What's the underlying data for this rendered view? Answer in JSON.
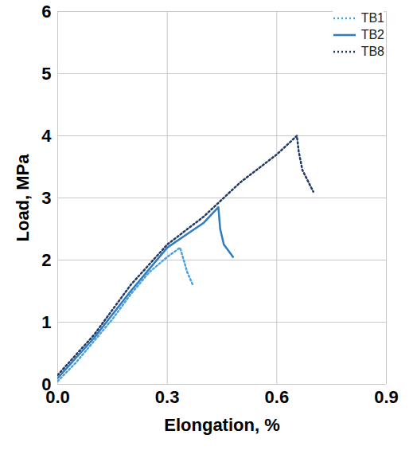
{
  "chart_data": {
    "type": "line",
    "x_label": "Elongation, %",
    "y_label": "Load, MPa",
    "xlim": [
      0,
      0.9
    ],
    "xticks": [
      {
        "value": 0,
        "label": "0.0"
      },
      0.3,
      0.6,
      0.9
    ],
    "ylim": [
      0,
      6
    ],
    "yticks": [
      0,
      1,
      2,
      3,
      4,
      5,
      6
    ],
    "grid": true,
    "legend": "top-right",
    "series": [
      {
        "name": "TB1",
        "color": "#4aa3df",
        "line_style": "dotted",
        "x": [
          0,
          0.05,
          0.1,
          0.15,
          0.2,
          0.25,
          0.3,
          0.335,
          0.34,
          0.355,
          0.37
        ],
        "values": [
          0.05,
          0.35,
          0.7,
          1.05,
          1.45,
          1.8,
          2.05,
          2.2,
          2.1,
          1.8,
          1.6
        ]
      },
      {
        "name": "TB2",
        "color": "#2e7bc0",
        "line_style": "solid",
        "x": [
          0,
          0.1,
          0.2,
          0.3,
          0.35,
          0.4,
          0.44,
          0.445,
          0.455,
          0.48
        ],
        "values": [
          0.1,
          0.75,
          1.5,
          2.2,
          2.4,
          2.6,
          2.85,
          2.5,
          2.25,
          2.05
        ]
      },
      {
        "name": "TB8",
        "color": "#1f3864",
        "line_style": "dotted",
        "x": [
          0,
          0.1,
          0.2,
          0.3,
          0.4,
          0.5,
          0.6,
          0.655,
          0.66,
          0.67,
          0.7
        ],
        "values": [
          0.15,
          0.8,
          1.6,
          2.25,
          2.7,
          3.25,
          3.7,
          4.0,
          3.75,
          3.45,
          3.1
        ]
      }
    ]
  }
}
